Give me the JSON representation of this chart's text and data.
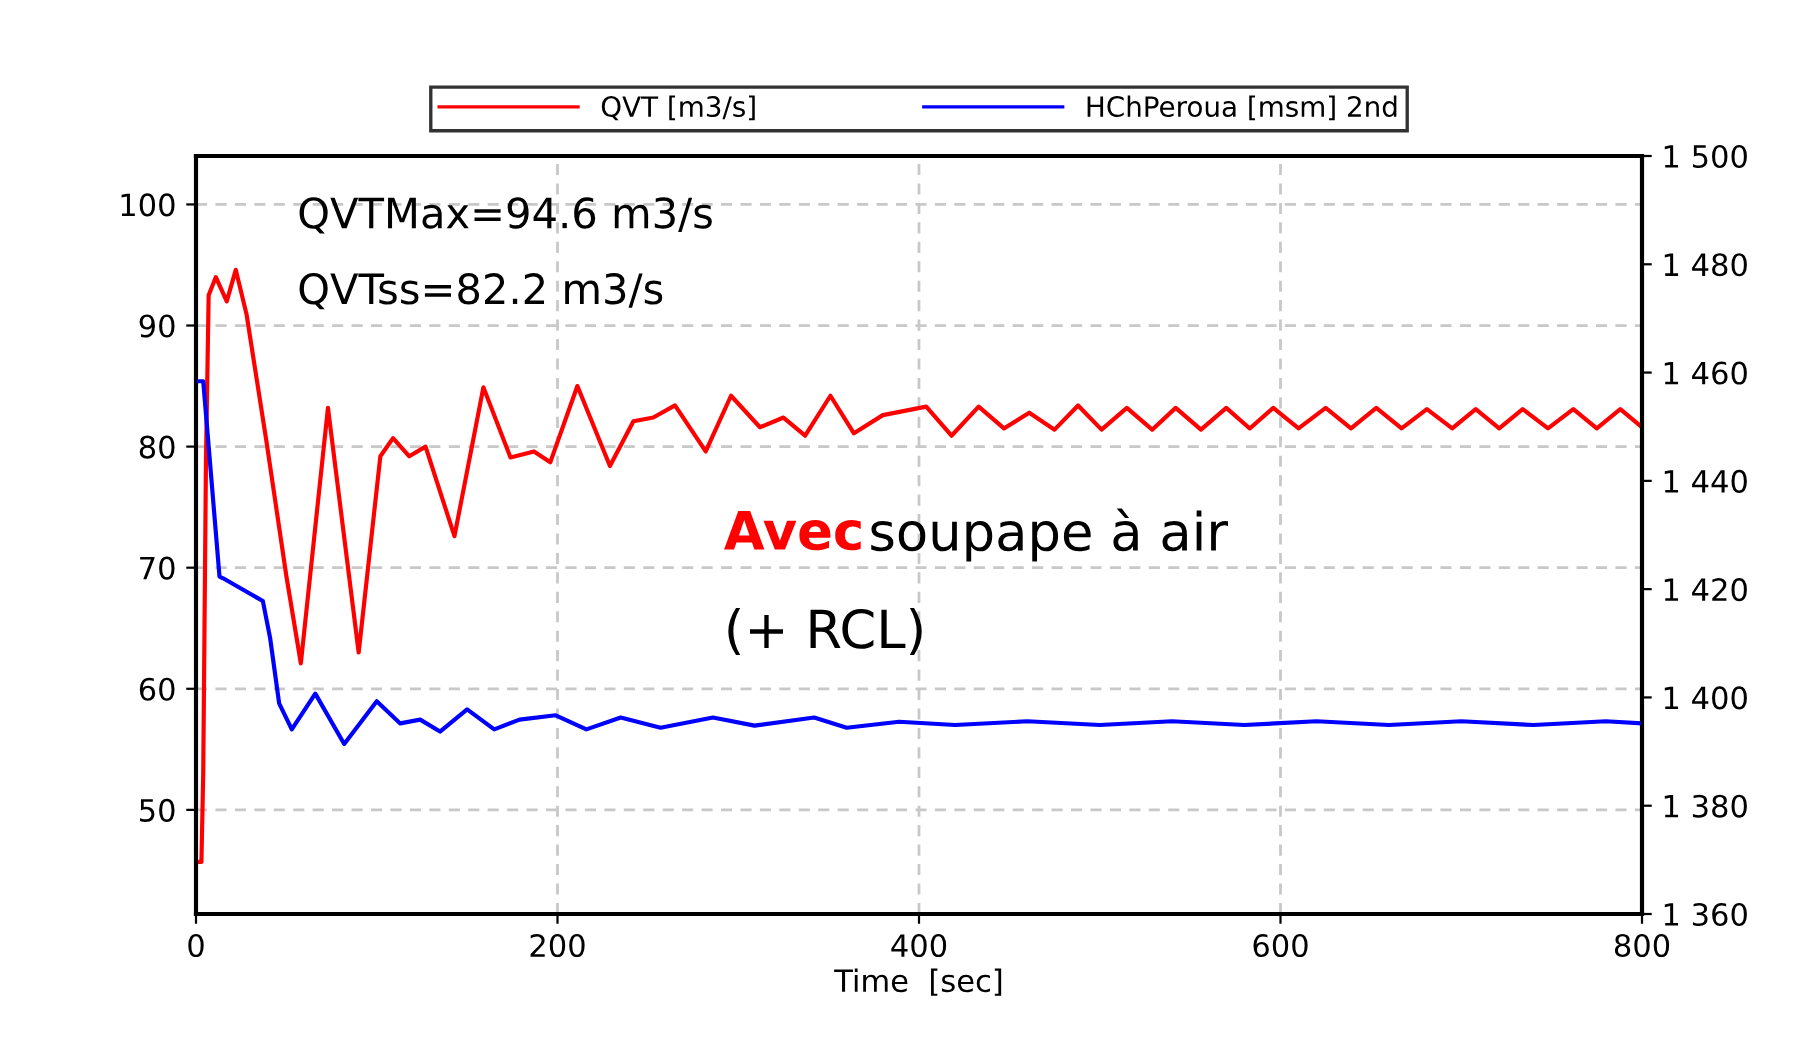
{
  "chart_data": {
    "type": "line",
    "xlabel": "Time  [sec]",
    "xlim": [
      0,
      800
    ],
    "xticks": [
      0,
      200,
      400,
      600,
      800
    ],
    "ylim": [
      41.4,
      104
    ],
    "yticks": [
      50,
      60,
      70,
      80,
      90,
      100
    ],
    "y2lim": [
      1360,
      1500
    ],
    "y2ticks": [
      {
        "value": 1360,
        "label": "1 360"
      },
      {
        "value": 1380,
        "label": "1 380"
      },
      {
        "value": 1400,
        "label": "1 400"
      },
      {
        "value": 1420,
        "label": "1 420"
      },
      {
        "value": 1440,
        "label": "1 440"
      },
      {
        "value": 1460,
        "label": "1 460"
      },
      {
        "value": 1480,
        "label": "1 480"
      },
      {
        "value": 1500,
        "label": "1 500"
      }
    ],
    "grid": true,
    "legend": "top",
    "marker": "none",
    "line_style": "solid",
    "annotations": [
      "QVTMax=94.6 m3/s",
      "QVTss=82.2 m3/s",
      "Avec",
      "soupape à air",
      "(+ RCL)"
    ],
    "series": [
      {
        "name": "QVT [m3/s]",
        "color": "#ff0000",
        "x": [
          0,
          3,
          4,
          5.5,
          7,
          11,
          17,
          22,
          28,
          39,
          50,
          58,
          73,
          90,
          102,
          109,
          118,
          127,
          143,
          159,
          174,
          187,
          196,
          211,
          229,
          242,
          253,
          265,
          282,
          296,
          312,
          325,
          337,
          351,
          364,
          380,
          404,
          418,
          433,
          447,
          461,
          475,
          488,
          501,
          515,
          529,
          542,
          556,
          570,
          583,
          596,
          610,
          625,
          639,
          653,
          667,
          681,
          695,
          708,
          721,
          734,
          748,
          762,
          775,
          788,
          800
        ],
        "values": [
          45.7,
          45.7,
          53,
          78.7,
          92.5,
          94,
          92,
          94.6,
          90.9,
          80.4,
          69.3,
          62.1,
          83.2,
          63,
          79.2,
          80.7,
          79.2,
          80,
          72.6,
          84.9,
          79.1,
          79.6,
          78.7,
          85,
          78.4,
          82.1,
          82.4,
          83.4,
          79.6,
          84.2,
          81.6,
          82.4,
          80.9,
          84.2,
          81.1,
          82.6,
          83.3,
          80.9,
          83.3,
          81.5,
          82.8,
          81.4,
          83.4,
          81.4,
          83.2,
          81.4,
          83.2,
          81.4,
          83.2,
          81.5,
          83.2,
          81.5,
          83.2,
          81.5,
          83.2,
          81.5,
          83.1,
          81.5,
          83.1,
          81.5,
          83.1,
          81.5,
          83.1,
          81.5,
          83.1,
          81.6
        ]
      },
      {
        "name": "HChPeroua [msm] 2nd",
        "color": "#0000ff",
        "axis": "y2",
        "x": [
          0,
          4,
          8,
          13,
          15,
          37,
          41,
          46,
          53,
          66,
          82,
          100,
          113,
          124,
          135,
          150,
          165,
          179,
          199,
          216,
          235,
          257,
          286,
          309,
          342,
          360,
          389,
          420,
          460,
          500,
          540,
          580,
          620,
          660,
          700,
          740,
          780,
          800
        ],
        "values": [
          1458.4,
          1458.4,
          1442.4,
          1422.3,
          1422,
          1417.8,
          1411,
          1398.9,
          1394.1,
          1400.7,
          1391.4,
          1399.3,
          1395.2,
          1395.9,
          1393.7,
          1397.8,
          1394.1,
          1395.9,
          1396.7,
          1394.1,
          1396.3,
          1394.4,
          1396.3,
          1394.8,
          1396.3,
          1394.4,
          1395.5,
          1394.9,
          1395.6,
          1394.9,
          1395.6,
          1394.9,
          1395.6,
          1394.9,
          1395.6,
          1394.9,
          1395.6,
          1395.2
        ]
      }
    ]
  }
}
